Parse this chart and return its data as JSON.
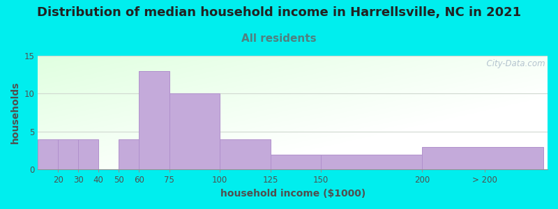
{
  "title": "Distribution of median household income in Harrellsville, NC in 2021",
  "subtitle": "All residents",
  "xlabel": "household income ($1000)",
  "ylabel": "households",
  "background_color": "#00EEEE",
  "bar_color": "#c4aada",
  "bar_edge_color": "#b090cc",
  "categories": [
    "20",
    "30",
    "40",
    "50",
    "60",
    "75",
    "100",
    "125",
    "150",
    "200",
    "> 200"
  ],
  "values": [
    4,
    4,
    4,
    0,
    4,
    13,
    10,
    4,
    2,
    2,
    3
  ],
  "bar_lefts": [
    10,
    20,
    30,
    40,
    50,
    60,
    75,
    100,
    125,
    150,
    200
  ],
  "bar_widths": [
    10,
    10,
    10,
    10,
    10,
    15,
    25,
    25,
    25,
    50,
    60
  ],
  "xlim": [
    10,
    262
  ],
  "ylim": [
    0,
    15
  ],
  "yticks": [
    0,
    5,
    10,
    15
  ],
  "xtick_positions": [
    20,
    30,
    40,
    50,
    60,
    75,
    100,
    125,
    150,
    200,
    231
  ],
  "title_fontsize": 13,
  "subtitle_fontsize": 11,
  "axis_label_fontsize": 10,
  "tick_fontsize": 8.5,
  "watermark_text": "  City-Data.com",
  "watermark_color": "#a8b8c8",
  "grid_color": "#d0d8d0",
  "title_color": "#222222",
  "subtitle_color": "#508080",
  "label_color": "#505050"
}
